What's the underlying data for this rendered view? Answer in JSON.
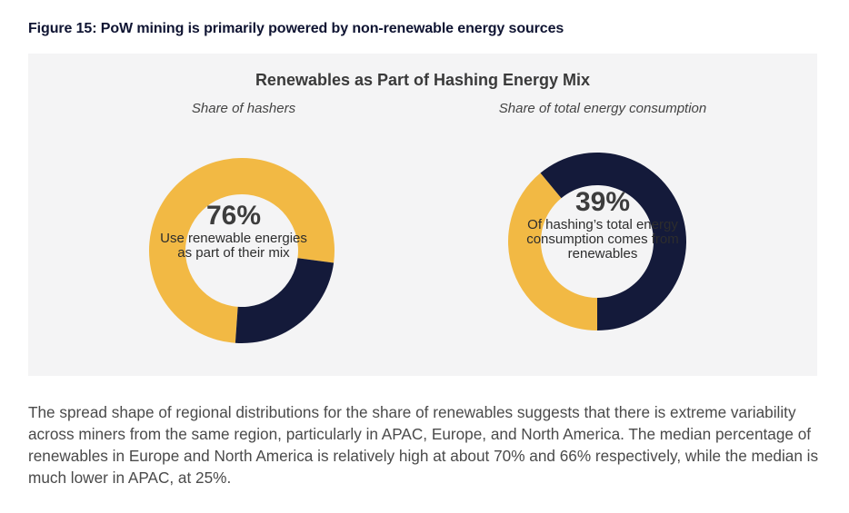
{
  "figure_title": "Figure 15: PoW mining is primarily powered by non-renewable energy sources",
  "chart_title": "Renewables as Part of Hashing Energy Mix",
  "colors": {
    "renewable": "#f2b944",
    "non_renewable": "#141a3a",
    "panel_background": "#f4f4f5"
  },
  "chart_data": [
    {
      "type": "pie",
      "subtitle": "Share of hashers",
      "center_value": "76%",
      "center_text": "Use renewable energies as part of their mix",
      "values": [
        76,
        24
      ]
    },
    {
      "type": "pie",
      "subtitle": "Share of total energy consumption",
      "center_value": "39%",
      "center_text": "Of hashing’s total energy consumption comes from renewables",
      "values": [
        39,
        61
      ]
    }
  ],
  "body_text": "The spread shape of regional distributions for the share of renewables suggests that there is extreme variability across miners from the same region, particularly in APAC, Europe, and North America. The median percentage of renewables in Europe and North America is relatively high at about 70% and 66% respectively, while the median is much lower in APAC, at 25%."
}
